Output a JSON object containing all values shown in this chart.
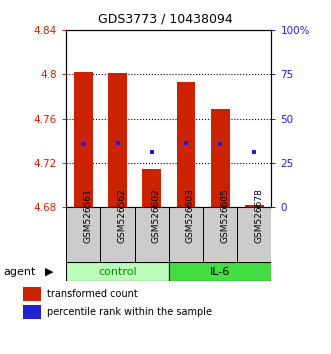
{
  "title": "GDS3773 / 10438094",
  "samples": [
    "GSM526561",
    "GSM526562",
    "GSM526602",
    "GSM526603",
    "GSM526605",
    "GSM526678"
  ],
  "bar_bottoms": [
    4.68,
    4.68,
    4.68,
    4.68,
    4.68,
    4.68
  ],
  "bar_tops": [
    4.802,
    4.801,
    4.714,
    4.793,
    4.769,
    4.682
  ],
  "blue_values": [
    4.737,
    4.738,
    4.73,
    4.738,
    4.737,
    4.73
  ],
  "ylim": [
    4.68,
    4.84
  ],
  "yticks": [
    4.68,
    4.72,
    4.76,
    4.8,
    4.84
  ],
  "ytick_labels": [
    "4.68",
    "4.72",
    "4.76",
    "4.8",
    "4.84"
  ],
  "right_ytick_labels": [
    "0",
    "25",
    "50",
    "75",
    "100%"
  ],
  "bar_color": "#cc2200",
  "blue_color": "#2222cc",
  "left_tick_color": "#cc2200",
  "right_tick_color": "#2222cc",
  "agent_label": "agent",
  "control_label": "control",
  "il6_label": "IL-6",
  "legend_bar_label": "transformed count",
  "legend_blue_label": "percentile rank within the sample",
  "bar_width": 0.55,
  "grid_dotted_ticks": [
    4.72,
    4.76,
    4.8
  ],
  "ctrl_color": "#bbffbb",
  "il6_color": "#44dd44",
  "group_box_color": "#cccccc",
  "group_label_color_ctrl": "#008800",
  "group_label_color_il6": "#000000"
}
